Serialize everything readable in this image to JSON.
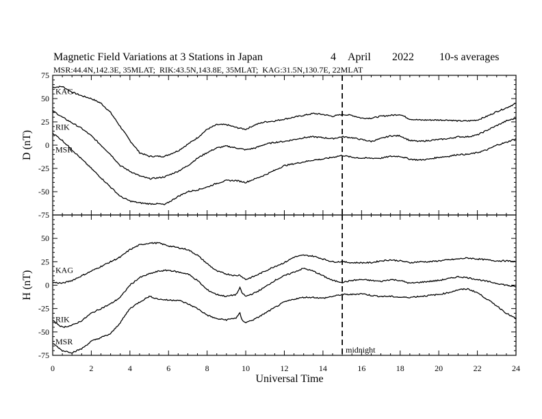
{
  "chart_data": {
    "type": "line",
    "title": "Magnetic Field Variations at 3 Stations in Japan",
    "date": {
      "day": "4",
      "month": "April",
      "year": "2022"
    },
    "averaging": "10-s averages",
    "stations_line": "MSR:44.4N,142.3E, 35MLAT;  RIK:43.5N,143.8E, 35MLAT;  KAG:31.5N,130.7E, 22MLAT",
    "xlabel": "Universal Time",
    "xlim": [
      0,
      24
    ],
    "xticks": [
      "0",
      "2",
      "4",
      "6",
      "8",
      "10",
      "12",
      "14",
      "16",
      "18",
      "20",
      "22",
      "24"
    ],
    "midnight": {
      "x": 15,
      "label": "midnight"
    },
    "panels": [
      {
        "ylabel": "D (nT)",
        "ylim": [
          -75,
          75
        ],
        "yticks": [
          "75",
          "50",
          "25",
          "0",
          "-25",
          "-50",
          "-75"
        ],
        "series": [
          {
            "name": "KAG",
            "x": [
              0,
              0.5,
              1,
              1.5,
              2,
              2.5,
              3,
              3.5,
              4,
              4.5,
              5,
              5.5,
              5.8,
              6.5,
              7,
              7.5,
              8,
              8.5,
              9,
              9.5,
              10,
              10.5,
              11,
              11.5,
              12,
              12.5,
              13,
              13.5,
              14,
              14.5,
              15,
              15.5,
              16,
              16.5,
              17,
              17.5,
              18,
              18.5,
              19,
              19.5,
              20,
              20.5,
              21,
              21.5,
              22,
              22.5,
              23,
              23.5,
              24
            ],
            "values": [
              62,
              63,
              57,
              53,
              50,
              45,
              35,
              20,
              5,
              -8,
              -12,
              -12,
              -12,
              -6,
              1,
              8,
              17,
              22,
              22,
              19,
              17,
              22,
              25,
              26,
              28,
              30,
              32,
              34,
              33,
              31,
              33,
              32,
              29,
              29,
              31,
              32,
              33,
              28,
              27,
              27,
              27,
              27,
              26,
              26,
              27,
              31,
              36,
              40,
              45
            ]
          },
          {
            "name": "RIK",
            "x": [
              0,
              0.5,
              1,
              1.5,
              2,
              2.5,
              3,
              3.5,
              4,
              4.5,
              5,
              5.5,
              5.8,
              6.5,
              7,
              7.5,
              8,
              8.5,
              9,
              9.5,
              10,
              10.5,
              11,
              11.5,
              12,
              12.5,
              13,
              13.5,
              14,
              14.5,
              15,
              15.5,
              16,
              16.5,
              17,
              17.5,
              18,
              18.5,
              19,
              19.5,
              20,
              20.5,
              21,
              21.5,
              22,
              22.5,
              23,
              23.5,
              24
            ],
            "values": [
              37,
              30,
              24,
              18,
              10,
              0,
              -10,
              -22,
              -28,
              -33,
              -36,
              -35,
              -34,
              -28,
              -22,
              -14,
              -8,
              -3,
              -1,
              -3,
              -5,
              -3,
              1,
              3,
              4,
              6,
              8,
              9,
              8,
              7,
              9,
              8,
              6,
              4,
              7,
              10,
              10,
              5,
              4,
              5,
              6,
              7,
              9,
              9,
              11,
              16,
              21,
              26,
              29
            ]
          },
          {
            "name": "MSR",
            "x": [
              0,
              0.5,
              1,
              1.5,
              2,
              2.5,
              3,
              3.5,
              4,
              4.5,
              5,
              5.5,
              5.8,
              6.5,
              7,
              7.5,
              8,
              8.5,
              9,
              9.5,
              10,
              10.5,
              11,
              11.5,
              12,
              12.5,
              13,
              13.5,
              14,
              14.5,
              15,
              15.5,
              16,
              16.5,
              17,
              17.5,
              18,
              18.5,
              19,
              19.5,
              20,
              20.5,
              21,
              21.5,
              22,
              22.5,
              23,
              23.5,
              24
            ],
            "values": [
              13,
              5,
              -5,
              -15,
              -25,
              -35,
              -45,
              -55,
              -60,
              -62,
              -63,
              -63,
              -64,
              -55,
              -50,
              -48,
              -45,
              -41,
              -38,
              -38,
              -40,
              -36,
              -32,
              -27,
              -22,
              -20,
              -18,
              -16,
              -15,
              -13,
              -11,
              -13,
              -14,
              -14,
              -14,
              -12,
              -12,
              -15,
              -16,
              -15,
              -13,
              -12,
              -10,
              -10,
              -8,
              -5,
              0,
              3,
              7
            ]
          }
        ]
      },
      {
        "ylabel": "H (nT)",
        "ylim": [
          -75,
          75
        ],
        "yticks": [
          "50",
          "25",
          "0",
          "-25",
          "-50",
          "-75"
        ],
        "series": [
          {
            "name": "KAG",
            "x": [
              0,
              0.5,
              1,
              1.5,
              2,
              2.5,
              3,
              3.5,
              4,
              4.5,
              5,
              5.5,
              6,
              6.5,
              7,
              7.5,
              8,
              8.5,
              9,
              9.5,
              9.7,
              9.8,
              10,
              10.5,
              11,
              11.5,
              12,
              12.5,
              13,
              13.5,
              14,
              14.5,
              15,
              15.5,
              16,
              16.5,
              17,
              17.5,
              18,
              18.5,
              19,
              19.5,
              20,
              20.5,
              21,
              21.5,
              22,
              22.5,
              23,
              23.5,
              24
            ],
            "values": [
              3,
              2,
              5,
              10,
              15,
              20,
              25,
              30,
              38,
              43,
              45,
              45,
              42,
              40,
              38,
              32,
              23,
              15,
              12,
              10,
              11,
              9,
              6,
              10,
              15,
              20,
              24,
              30,
              32,
              31,
              28,
              25,
              25,
              24,
              24,
              24,
              26,
              27,
              26,
              24,
              25,
              25,
              26,
              27,
              28,
              29,
              28,
              27,
              26,
              26,
              25
            ]
          },
          {
            "name": "RIK",
            "x": [
              0,
              0.5,
              1,
              1.5,
              2,
              2.5,
              3,
              3.5,
              4,
              4.5,
              5,
              5.5,
              6,
              6.5,
              7,
              7.5,
              8,
              8.5,
              9,
              9.5,
              9.7,
              9.8,
              10,
              10.5,
              11,
              11.5,
              12,
              12.5,
              13,
              13.5,
              14,
              14.5,
              15,
              15.5,
              16,
              16.5,
              17,
              17.5,
              18,
              18.5,
              19,
              19.5,
              20,
              20.5,
              21,
              21.5,
              22,
              22.5,
              23,
              23.5,
              24
            ],
            "values": [
              -38,
              -45,
              -43,
              -38,
              -30,
              -25,
              -20,
              -13,
              0,
              8,
              12,
              15,
              16,
              14,
              12,
              5,
              -5,
              -10,
              -12,
              -10,
              -3,
              -8,
              -12,
              -8,
              -2,
              5,
              10,
              14,
              18,
              15,
              10,
              5,
              3,
              5,
              6,
              5,
              4,
              6,
              5,
              2,
              3,
              4,
              5,
              7,
              9,
              8,
              6,
              4,
              2,
              0,
              -2
            ]
          },
          {
            "name": "MSR",
            "x": [
              0,
              0.5,
              1,
              1.5,
              2,
              2.5,
              3,
              3.5,
              4,
              4.5,
              5,
              5.5,
              6,
              6.5,
              7,
              7.5,
              8,
              8.5,
              9,
              9.5,
              9.7,
              9.8,
              10,
              10.5,
              11,
              11.5,
              12,
              12.5,
              13,
              13.5,
              14,
              14.5,
              15,
              15.5,
              16,
              16.5,
              17,
              17.5,
              18,
              18.5,
              19,
              19.5,
              20,
              20.5,
              21,
              21.5,
              22,
              22.5,
              23,
              23.5,
              24
            ],
            "values": [
              -62,
              -70,
              -72,
              -68,
              -60,
              -56,
              -52,
              -40,
              -25,
              -18,
              -12,
              -15,
              -16,
              -16,
              -20,
              -25,
              -32,
              -36,
              -37,
              -35,
              -30,
              -37,
              -40,
              -36,
              -30,
              -24,
              -18,
              -15,
              -13,
              -13,
              -14,
              -12,
              -10,
              -10,
              -9,
              -11,
              -12,
              -12,
              -13,
              -13,
              -12,
              -11,
              -10,
              -8,
              -5,
              -4,
              -8,
              -15,
              -22,
              -30,
              -36
            ]
          }
        ]
      }
    ]
  }
}
